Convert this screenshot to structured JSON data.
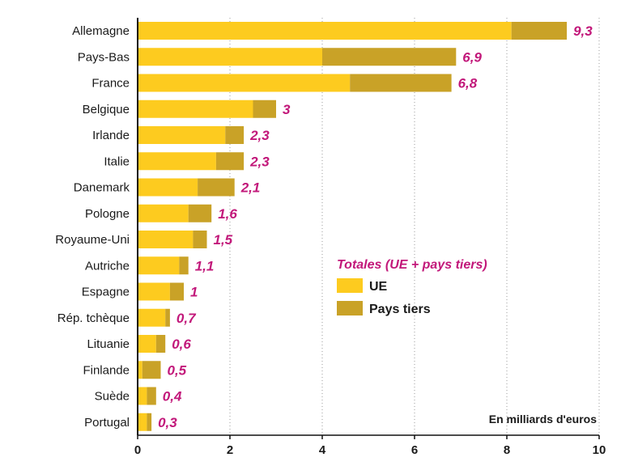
{
  "chart_data": {
    "type": "bar",
    "orientation": "horizontal",
    "stacked": true,
    "categories": [
      "Allemagne",
      "Pays-Bas",
      "France",
      "Belgique",
      "Irlande",
      "Italie",
      "Danemark",
      "Pologne",
      "Royaume-Uni",
      "Autriche",
      "Espagne",
      "Rép. tchèque",
      "Lituanie",
      "Finlande",
      "Suède",
      "Portugal"
    ],
    "series": [
      {
        "name": "UE",
        "color": "#fdcb1f",
        "values": [
          8.1,
          4.0,
          4.6,
          2.5,
          1.9,
          1.7,
          1.3,
          1.1,
          1.2,
          0.9,
          0.7,
          0.6,
          0.4,
          0.1,
          0.2,
          0.2
        ]
      },
      {
        "name": "Pays tiers",
        "color": "#c9a227",
        "values": [
          1.2,
          2.9,
          2.2,
          0.5,
          0.4,
          0.6,
          0.8,
          0.5,
          0.3,
          0.2,
          0.3,
          0.1,
          0.2,
          0.4,
          0.2,
          0.1
        ]
      }
    ],
    "totals": [
      9.3,
      6.9,
      6.8,
      3,
      2.3,
      2.3,
      2.1,
      1.6,
      1.5,
      1.1,
      1,
      0.7,
      0.6,
      0.5,
      0.4,
      0.3
    ],
    "total_labels": [
      "9,3",
      "6,9",
      "6,8",
      "3",
      "2,3",
      "2,3",
      "2,1",
      "1,6",
      "1,5",
      "1,1",
      "1",
      "0,7",
      "0,6",
      "0,5",
      "0,4",
      "0,3"
    ],
    "xlim": [
      0,
      10
    ],
    "x_ticks": [
      0,
      2,
      4,
      6,
      8,
      10
    ],
    "x_tick_labels": [
      "0",
      "2",
      "4",
      "6",
      "8",
      "10"
    ],
    "grid": "vertical dotted",
    "legend_title": "Totales (UE + pays tiers)",
    "legend_placement": "center-right",
    "unit_note": "En milliards d'euros",
    "total_label_color": "#c2187a"
  }
}
